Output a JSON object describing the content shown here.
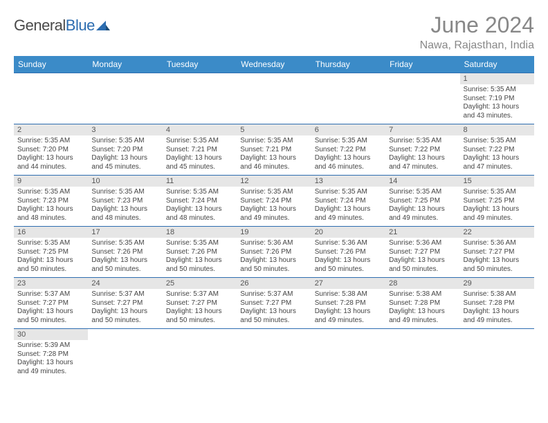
{
  "logo": {
    "general": "General",
    "blue": "Blue"
  },
  "title": "June 2024",
  "location": "Nawa, Rajasthan, India",
  "colors": {
    "header_bg": "#3b8bc8",
    "border": "#2d6db0",
    "daynum_bg": "#e6e6e6",
    "title_color": "#888888"
  },
  "weekdays": [
    "Sunday",
    "Monday",
    "Tuesday",
    "Wednesday",
    "Thursday",
    "Friday",
    "Saturday"
  ],
  "days": {
    "1": {
      "sunrise": "Sunrise: 5:35 AM",
      "sunset": "Sunset: 7:19 PM",
      "daylight": "Daylight: 13 hours and 43 minutes."
    },
    "2": {
      "sunrise": "Sunrise: 5:35 AM",
      "sunset": "Sunset: 7:20 PM",
      "daylight": "Daylight: 13 hours and 44 minutes."
    },
    "3": {
      "sunrise": "Sunrise: 5:35 AM",
      "sunset": "Sunset: 7:20 PM",
      "daylight": "Daylight: 13 hours and 45 minutes."
    },
    "4": {
      "sunrise": "Sunrise: 5:35 AM",
      "sunset": "Sunset: 7:21 PM",
      "daylight": "Daylight: 13 hours and 45 minutes."
    },
    "5": {
      "sunrise": "Sunrise: 5:35 AM",
      "sunset": "Sunset: 7:21 PM",
      "daylight": "Daylight: 13 hours and 46 minutes."
    },
    "6": {
      "sunrise": "Sunrise: 5:35 AM",
      "sunset": "Sunset: 7:22 PM",
      "daylight": "Daylight: 13 hours and 46 minutes."
    },
    "7": {
      "sunrise": "Sunrise: 5:35 AM",
      "sunset": "Sunset: 7:22 PM",
      "daylight": "Daylight: 13 hours and 47 minutes."
    },
    "8": {
      "sunrise": "Sunrise: 5:35 AM",
      "sunset": "Sunset: 7:22 PM",
      "daylight": "Daylight: 13 hours and 47 minutes."
    },
    "9": {
      "sunrise": "Sunrise: 5:35 AM",
      "sunset": "Sunset: 7:23 PM",
      "daylight": "Daylight: 13 hours and 48 minutes."
    },
    "10": {
      "sunrise": "Sunrise: 5:35 AM",
      "sunset": "Sunset: 7:23 PM",
      "daylight": "Daylight: 13 hours and 48 minutes."
    },
    "11": {
      "sunrise": "Sunrise: 5:35 AM",
      "sunset": "Sunset: 7:24 PM",
      "daylight": "Daylight: 13 hours and 48 minutes."
    },
    "12": {
      "sunrise": "Sunrise: 5:35 AM",
      "sunset": "Sunset: 7:24 PM",
      "daylight": "Daylight: 13 hours and 49 minutes."
    },
    "13": {
      "sunrise": "Sunrise: 5:35 AM",
      "sunset": "Sunset: 7:24 PM",
      "daylight": "Daylight: 13 hours and 49 minutes."
    },
    "14": {
      "sunrise": "Sunrise: 5:35 AM",
      "sunset": "Sunset: 7:25 PM",
      "daylight": "Daylight: 13 hours and 49 minutes."
    },
    "15": {
      "sunrise": "Sunrise: 5:35 AM",
      "sunset": "Sunset: 7:25 PM",
      "daylight": "Daylight: 13 hours and 49 minutes."
    },
    "16": {
      "sunrise": "Sunrise: 5:35 AM",
      "sunset": "Sunset: 7:25 PM",
      "daylight": "Daylight: 13 hours and 50 minutes."
    },
    "17": {
      "sunrise": "Sunrise: 5:35 AM",
      "sunset": "Sunset: 7:26 PM",
      "daylight": "Daylight: 13 hours and 50 minutes."
    },
    "18": {
      "sunrise": "Sunrise: 5:35 AM",
      "sunset": "Sunset: 7:26 PM",
      "daylight": "Daylight: 13 hours and 50 minutes."
    },
    "19": {
      "sunrise": "Sunrise: 5:36 AM",
      "sunset": "Sunset: 7:26 PM",
      "daylight": "Daylight: 13 hours and 50 minutes."
    },
    "20": {
      "sunrise": "Sunrise: 5:36 AM",
      "sunset": "Sunset: 7:26 PM",
      "daylight": "Daylight: 13 hours and 50 minutes."
    },
    "21": {
      "sunrise": "Sunrise: 5:36 AM",
      "sunset": "Sunset: 7:27 PM",
      "daylight": "Daylight: 13 hours and 50 minutes."
    },
    "22": {
      "sunrise": "Sunrise: 5:36 AM",
      "sunset": "Sunset: 7:27 PM",
      "daylight": "Daylight: 13 hours and 50 minutes."
    },
    "23": {
      "sunrise": "Sunrise: 5:37 AM",
      "sunset": "Sunset: 7:27 PM",
      "daylight": "Daylight: 13 hours and 50 minutes."
    },
    "24": {
      "sunrise": "Sunrise: 5:37 AM",
      "sunset": "Sunset: 7:27 PM",
      "daylight": "Daylight: 13 hours and 50 minutes."
    },
    "25": {
      "sunrise": "Sunrise: 5:37 AM",
      "sunset": "Sunset: 7:27 PM",
      "daylight": "Daylight: 13 hours and 50 minutes."
    },
    "26": {
      "sunrise": "Sunrise: 5:37 AM",
      "sunset": "Sunset: 7:27 PM",
      "daylight": "Daylight: 13 hours and 50 minutes."
    },
    "27": {
      "sunrise": "Sunrise: 5:38 AM",
      "sunset": "Sunset: 7:28 PM",
      "daylight": "Daylight: 13 hours and 49 minutes."
    },
    "28": {
      "sunrise": "Sunrise: 5:38 AM",
      "sunset": "Sunset: 7:28 PM",
      "daylight": "Daylight: 13 hours and 49 minutes."
    },
    "29": {
      "sunrise": "Sunrise: 5:38 AM",
      "sunset": "Sunset: 7:28 PM",
      "daylight": "Daylight: 13 hours and 49 minutes."
    },
    "30": {
      "sunrise": "Sunrise: 5:39 AM",
      "sunset": "Sunset: 7:28 PM",
      "daylight": "Daylight: 13 hours and 49 minutes."
    }
  },
  "layout": [
    [
      null,
      null,
      null,
      null,
      null,
      null,
      "1"
    ],
    [
      "2",
      "3",
      "4",
      "5",
      "6",
      "7",
      "8"
    ],
    [
      "9",
      "10",
      "11",
      "12",
      "13",
      "14",
      "15"
    ],
    [
      "16",
      "17",
      "18",
      "19",
      "20",
      "21",
      "22"
    ],
    [
      "23",
      "24",
      "25",
      "26",
      "27",
      "28",
      "29"
    ],
    [
      "30",
      null,
      null,
      null,
      null,
      null,
      null
    ]
  ]
}
